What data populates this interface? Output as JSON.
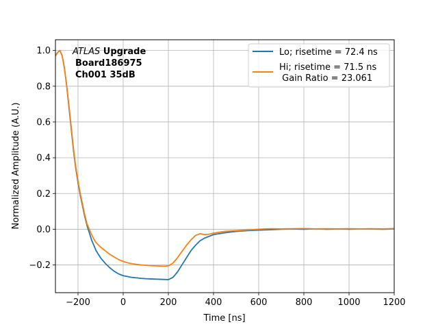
{
  "chart_data": {
    "type": "line",
    "title": "",
    "xlabel": "Time [ns]",
    "ylabel": "Normalized Amplitude (A.U.)",
    "xlim": [
      -300,
      1200
    ],
    "ylim": [
      -0.355,
      1.06
    ],
    "xticks": [
      -200,
      0,
      200,
      400,
      600,
      800,
      1000,
      1200
    ],
    "xtick_labels": [
      "−200",
      "0",
      "200",
      "400",
      "600",
      "800",
      "1000",
      "1200"
    ],
    "yticks": [
      -0.2,
      0.0,
      0.2,
      0.4,
      0.6,
      0.8,
      1.0
    ],
    "ytick_labels": [
      "−0.2",
      "0.0",
      "0.2",
      "0.4",
      "0.6",
      "0.8",
      "1.0"
    ],
    "grid": true,
    "legend_position": "top-right",
    "annotation": {
      "atlas": "ATLAS",
      "upgrade": " Upgrade",
      "line2": "Board186975",
      "line3": "Ch001 35dB"
    },
    "series": [
      {
        "name": "Lo; risetime = 72.4 ns",
        "color": "#1f77b4",
        "x": [
          -300,
          -290,
          -280,
          -270,
          -260,
          -250,
          -240,
          -230,
          -220,
          -210,
          -200,
          -190,
          -180,
          -170,
          -160,
          -150,
          -140,
          -130,
          -120,
          -100,
          -80,
          -60,
          -40,
          -20,
          0,
          20,
          40,
          60,
          80,
          100,
          120,
          140,
          160,
          180,
          200,
          220,
          240,
          260,
          280,
          300,
          320,
          340,
          360,
          380,
          400,
          450,
          500,
          550,
          600,
          650,
          700,
          750,
          800,
          850,
          900,
          950,
          1000,
          1050,
          1100,
          1150,
          1200
        ],
        "y": [
          0.97,
          0.99,
          1.0,
          0.97,
          0.9,
          0.8,
          0.68,
          0.56,
          0.44,
          0.34,
          0.26,
          0.19,
          0.13,
          0.07,
          0.02,
          -0.02,
          -0.06,
          -0.09,
          -0.12,
          -0.16,
          -0.19,
          -0.215,
          -0.235,
          -0.25,
          -0.26,
          -0.265,
          -0.27,
          -0.272,
          -0.275,
          -0.277,
          -0.278,
          -0.279,
          -0.28,
          -0.281,
          -0.282,
          -0.27,
          -0.24,
          -0.2,
          -0.16,
          -0.12,
          -0.09,
          -0.065,
          -0.05,
          -0.04,
          -0.03,
          -0.02,
          -0.012,
          -0.008,
          -0.005,
          -0.003,
          0.0,
          0.001,
          0.0,
          0.002,
          0.0,
          0.001,
          0.0,
          0.002,
          0.001,
          0.0,
          0.002
        ]
      },
      {
        "name": "Hi; risetime = 71.5 ns",
        "name_line2": " Gain Ratio = 23.061",
        "color": "#ff7f0e",
        "x": [
          -300,
          -290,
          -280,
          -270,
          -260,
          -250,
          -240,
          -230,
          -220,
          -210,
          -200,
          -190,
          -180,
          -170,
          -160,
          -150,
          -140,
          -130,
          -120,
          -100,
          -80,
          -60,
          -40,
          -20,
          0,
          20,
          40,
          60,
          80,
          100,
          120,
          140,
          160,
          180,
          200,
          220,
          240,
          260,
          280,
          300,
          320,
          340,
          360,
          380,
          400,
          450,
          500,
          550,
          600,
          650,
          700,
          750,
          800,
          850,
          900,
          950,
          1000,
          1050,
          1100,
          1150,
          1200
        ],
        "y": [
          0.97,
          0.99,
          1.0,
          0.97,
          0.9,
          0.8,
          0.69,
          0.57,
          0.45,
          0.35,
          0.27,
          0.2,
          0.14,
          0.08,
          0.03,
          0.0,
          -0.03,
          -0.055,
          -0.075,
          -0.1,
          -0.12,
          -0.14,
          -0.155,
          -0.17,
          -0.18,
          -0.188,
          -0.193,
          -0.197,
          -0.2,
          -0.202,
          -0.204,
          -0.205,
          -0.206,
          -0.207,
          -0.205,
          -0.19,
          -0.16,
          -0.125,
          -0.09,
          -0.06,
          -0.035,
          -0.025,
          -0.03,
          -0.028,
          -0.022,
          -0.012,
          -0.008,
          -0.004,
          0.0,
          0.003,
          0.002,
          0.003,
          0.004,
          0.002,
          0.003,
          0.002,
          0.003,
          0.002,
          0.003,
          0.002,
          0.004
        ]
      }
    ]
  }
}
